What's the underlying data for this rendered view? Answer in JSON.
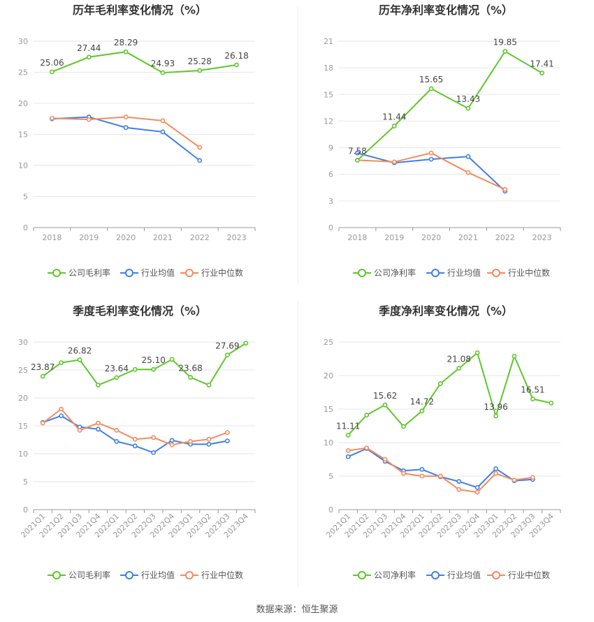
{
  "footer": {
    "source": "数据来源：恒生聚源"
  },
  "colors": {
    "company": "#5ec72a",
    "avg": "#3f7ee8",
    "median": "#f58a5d",
    "grid": "#e6e6e6",
    "axis": "#999999"
  },
  "chart_data": [
    {
      "type": "line",
      "title": "历年毛利率变化情况（%）",
      "categories": [
        "2018",
        "2019",
        "2020",
        "2021",
        "2022",
        "2023"
      ],
      "ylim": [
        0,
        30
      ],
      "yticks": [
        0,
        5,
        10,
        15,
        20,
        25,
        30
      ],
      "grid": true,
      "legend": "bottom",
      "series": [
        {
          "name": "公司毛利率",
          "color": "#5ec72a",
          "values": [
            25.06,
            27.44,
            28.29,
            24.93,
            25.28,
            26.18
          ],
          "labels": [
            "25.06",
            "27.44",
            "28.29",
            "24.93",
            "25.28",
            "26.18"
          ]
        },
        {
          "name": "行业均值",
          "color": "#3f7ee8",
          "values": [
            17.5,
            17.8,
            16.1,
            15.4,
            10.8,
            null
          ]
        },
        {
          "name": "行业中位数",
          "color": "#f58a5d",
          "values": [
            17.6,
            17.4,
            17.8,
            17.2,
            12.9,
            null
          ]
        }
      ]
    },
    {
      "type": "line",
      "title": "历年净利率变化情况（%）",
      "categories": [
        "2018",
        "2019",
        "2020",
        "2021",
        "2022",
        "2023"
      ],
      "ylim": [
        0,
        21
      ],
      "yticks": [
        0,
        3,
        6,
        9,
        12,
        15,
        18,
        21
      ],
      "grid": true,
      "legend": "bottom",
      "series": [
        {
          "name": "公司净利率",
          "color": "#5ec72a",
          "values": [
            7.58,
            11.44,
            15.65,
            13.43,
            19.85,
            17.41
          ],
          "labels": [
            "7.58",
            "11.44",
            "15.65",
            "13.43",
            "19.85",
            "17.41"
          ]
        },
        {
          "name": "行业均值",
          "color": "#3f7ee8",
          "values": [
            8.4,
            7.3,
            7.7,
            8.0,
            4.1,
            null
          ]
        },
        {
          "name": "行业中位数",
          "color": "#f58a5d",
          "values": [
            7.6,
            7.4,
            8.4,
            6.2,
            4.3,
            null
          ]
        }
      ]
    },
    {
      "type": "line",
      "title": "季度毛利率变化情况（%）",
      "categories": [
        "2021Q1",
        "2021Q2",
        "2021Q3",
        "2021Q4",
        "2022Q1",
        "2022Q2",
        "2022Q3",
        "2022Q4",
        "2023Q1",
        "2023Q2",
        "2023Q3",
        "2023Q4"
      ],
      "ylim": [
        0,
        30
      ],
      "yticks": [
        0,
        5,
        10,
        15,
        20,
        25,
        30
      ],
      "grid": true,
      "legend": "bottom",
      "series": [
        {
          "name": "公司毛利率",
          "color": "#5ec72a",
          "values": [
            23.87,
            26.3,
            26.82,
            22.3,
            23.64,
            25.1,
            25.1,
            26.9,
            23.68,
            22.3,
            27.69,
            29.8
          ],
          "labels": [
            "23.87",
            "",
            "26.82",
            "",
            "23.64",
            "",
            "25.10",
            "",
            "23.68",
            "",
            "27.69",
            ""
          ]
        },
        {
          "name": "行业均值",
          "color": "#3f7ee8",
          "values": [
            15.6,
            16.8,
            14.8,
            14.4,
            12.2,
            11.4,
            10.2,
            12.4,
            11.7,
            11.7,
            12.3,
            null
          ]
        },
        {
          "name": "行业中位数",
          "color": "#f58a5d",
          "values": [
            15.5,
            18.0,
            14.2,
            15.5,
            14.2,
            12.6,
            12.9,
            11.6,
            12.2,
            12.6,
            13.8,
            null
          ]
        }
      ]
    },
    {
      "type": "line",
      "title": "季度净利率变化情况（%）",
      "categories": [
        "2021Q1",
        "2021Q2",
        "2021Q3",
        "2021Q4",
        "2022Q1",
        "2022Q2",
        "2022Q3",
        "2022Q4",
        "2023Q1",
        "2023Q2",
        "2023Q3",
        "2023Q4"
      ],
      "ylim": [
        0,
        25
      ],
      "yticks": [
        0,
        5,
        10,
        15,
        20,
        25
      ],
      "grid": true,
      "legend": "bottom",
      "series": [
        {
          "name": "公司净利率",
          "color": "#5ec72a",
          "values": [
            11.11,
            14.1,
            15.62,
            12.4,
            14.72,
            18.8,
            21.08,
            23.4,
            13.96,
            22.9,
            16.51,
            15.9
          ],
          "labels": [
            "11.11",
            "",
            "15.62",
            "",
            "14.72",
            "",
            "21.08",
            "",
            "13.96",
            "",
            "16.51",
            ""
          ]
        },
        {
          "name": "行业均值",
          "color": "#3f7ee8",
          "values": [
            7.9,
            9.1,
            7.2,
            5.8,
            6.0,
            4.9,
            4.2,
            3.3,
            6.1,
            4.3,
            4.5,
            null
          ]
        },
        {
          "name": "行业中位数",
          "color": "#f58a5d",
          "values": [
            8.8,
            9.2,
            7.5,
            5.4,
            5.0,
            5.0,
            3.0,
            2.6,
            5.4,
            4.4,
            4.8,
            null
          ]
        }
      ]
    }
  ]
}
